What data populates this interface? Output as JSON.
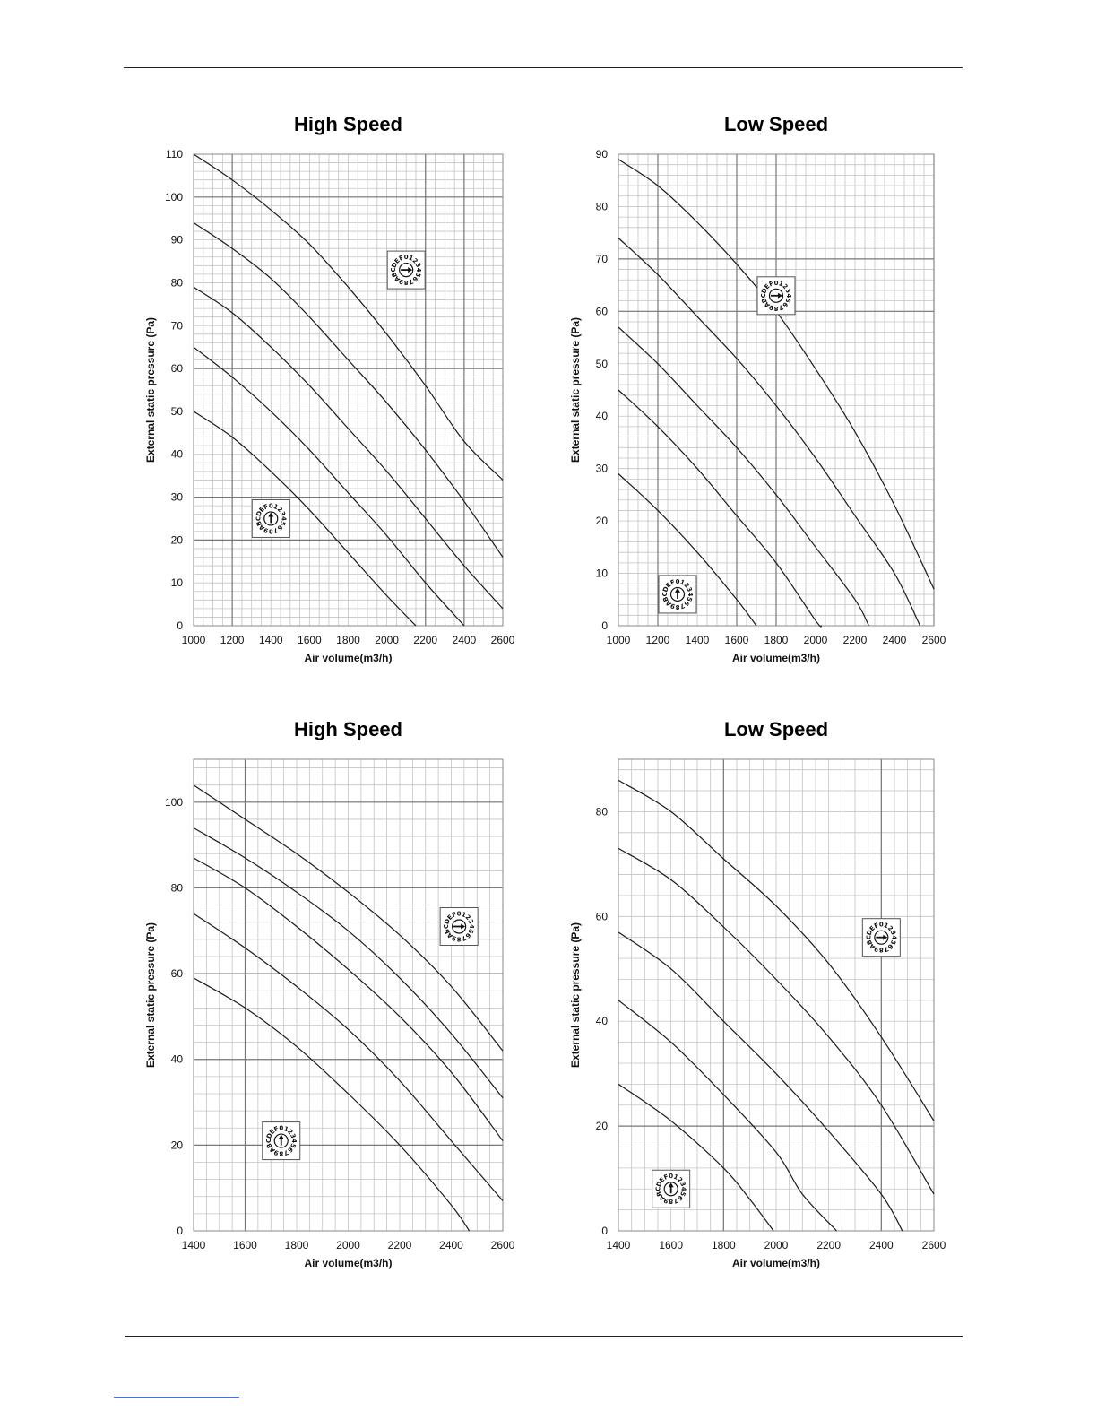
{
  "page": {
    "footer_link_color": "#4a6fd6"
  },
  "dial": {
    "characters": "0123456789ABCDEF",
    "icon": "rotary-switch-dial-icon"
  },
  "chart_data": [
    {
      "type": "line",
      "title": "High Speed",
      "xlabel": "Air volume(m3/h)",
      "ylabel": "External static pressure (Pa)",
      "xlim": [
        1000,
        2600
      ],
      "ylim": [
        0,
        110
      ],
      "x_ticks": [
        1000,
        1200,
        1400,
        1600,
        1800,
        2000,
        2200,
        2400,
        2600
      ],
      "y_ticks": [
        0,
        10,
        20,
        30,
        40,
        50,
        60,
        70,
        80,
        90,
        100,
        110
      ],
      "grid": {
        "minor_x": 50,
        "minor_y": 2,
        "major_x": [
          1200,
          2200,
          2400
        ],
        "major_y": [
          20,
          30,
          60,
          100
        ]
      },
      "dial_indicator": {
        "direction": "up",
        "at": [
          1400,
          25
        ]
      },
      "dial_indicator_2": {
        "direction": "right",
        "at": [
          2100,
          83
        ]
      },
      "series": [
        {
          "points": [
            [
              1000,
              50
            ],
            [
              1200,
              44
            ],
            [
              1400,
              36
            ],
            [
              1600,
              27
            ],
            [
              1800,
              17
            ],
            [
              2000,
              7
            ],
            [
              2150,
              0
            ]
          ]
        },
        {
          "points": [
            [
              1000,
              65
            ],
            [
              1200,
              58
            ],
            [
              1400,
              50
            ],
            [
              1600,
              41
            ],
            [
              1800,
              31
            ],
            [
              2000,
              21
            ],
            [
              2200,
              10
            ],
            [
              2400,
              0
            ]
          ]
        },
        {
          "points": [
            [
              1000,
              79
            ],
            [
              1200,
              73
            ],
            [
              1400,
              65
            ],
            [
              1600,
              56
            ],
            [
              1800,
              46
            ],
            [
              2000,
              36
            ],
            [
              2200,
              25
            ],
            [
              2400,
              14
            ],
            [
              2600,
              4
            ]
          ]
        },
        {
          "points": [
            [
              1000,
              94
            ],
            [
              1200,
              88
            ],
            [
              1400,
              81
            ],
            [
              1600,
              72
            ],
            [
              1800,
              62
            ],
            [
              2000,
              52
            ],
            [
              2200,
              41
            ],
            [
              2400,
              29
            ],
            [
              2600,
              16
            ]
          ]
        },
        {
          "points": [
            [
              1000,
              110
            ],
            [
              1200,
              104
            ],
            [
              1400,
              97
            ],
            [
              1600,
              89
            ],
            [
              1800,
              79
            ],
            [
              2000,
              68
            ],
            [
              2200,
              56
            ],
            [
              2400,
              43
            ],
            [
              2600,
              34
            ]
          ]
        }
      ]
    },
    {
      "type": "line",
      "title": "Low Speed",
      "xlabel": "Air volume(m3/h)",
      "ylabel": "External static pressure (Pa)",
      "xlim": [
        1000,
        2600
      ],
      "ylim": [
        0,
        90
      ],
      "x_ticks": [
        1000,
        1200,
        1400,
        1600,
        1800,
        2000,
        2200,
        2400,
        2600
      ],
      "y_ticks": [
        0,
        10,
        20,
        30,
        40,
        50,
        60,
        70,
        80,
        90
      ],
      "grid": {
        "minor_x": 50,
        "minor_y": 2,
        "major_x": [
          1200,
          1600,
          1800,
          2600
        ],
        "major_y": [
          60,
          70
        ]
      },
      "dial_indicator": {
        "direction": "up",
        "at": [
          1300,
          6
        ]
      },
      "dial_indicator_2": {
        "direction": "right",
        "at": [
          1800,
          63
        ]
      },
      "series": [
        {
          "points": [
            [
              1000,
              29
            ],
            [
              1200,
              22
            ],
            [
              1400,
              14
            ],
            [
              1600,
              5
            ],
            [
              1700,
              0
            ]
          ]
        },
        {
          "points": [
            [
              1000,
              45
            ],
            [
              1200,
              38
            ],
            [
              1400,
              30
            ],
            [
              1600,
              21
            ],
            [
              1800,
              12
            ],
            [
              2000,
              1
            ],
            [
              2030,
              0
            ]
          ]
        },
        {
          "points": [
            [
              1000,
              57
            ],
            [
              1200,
              50
            ],
            [
              1400,
              42
            ],
            [
              1600,
              34
            ],
            [
              1800,
              25
            ],
            [
              2000,
              15
            ],
            [
              2200,
              5
            ],
            [
              2270,
              0
            ]
          ]
        },
        {
          "points": [
            [
              1000,
              74
            ],
            [
              1200,
              67
            ],
            [
              1400,
              59
            ],
            [
              1600,
              51
            ],
            [
              1800,
              42
            ],
            [
              2000,
              32
            ],
            [
              2200,
              21
            ],
            [
              2400,
              10
            ],
            [
              2530,
              0
            ]
          ]
        },
        {
          "points": [
            [
              1000,
              89
            ],
            [
              1200,
              84
            ],
            [
              1400,
              77
            ],
            [
              1600,
              69
            ],
            [
              1800,
              60
            ],
            [
              2000,
              49
            ],
            [
              2200,
              37
            ],
            [
              2400,
              23
            ],
            [
              2600,
              7
            ]
          ]
        }
      ]
    },
    {
      "type": "line",
      "title": "High Speed",
      "xlabel": "Air volume(m3/h)",
      "ylabel": "External static pressure (Pa)",
      "xlim": [
        1400,
        2600
      ],
      "ylim": [
        0,
        110
      ],
      "x_ticks": [
        1400,
        1600,
        1800,
        2000,
        2200,
        2400,
        2600
      ],
      "y_ticks": [
        0,
        20,
        40,
        60,
        80,
        100
      ],
      "grid": {
        "minor_x": 50,
        "minor_y": 4,
        "major_x": [
          1600
        ],
        "major_y": [
          20,
          40,
          60,
          80,
          100
        ]
      },
      "dial_indicator": {
        "direction": "up",
        "at": [
          1740,
          21
        ]
      },
      "dial_indicator_2": {
        "direction": "right",
        "at": [
          2430,
          71
        ]
      },
      "series": [
        {
          "points": [
            [
              1400,
              59
            ],
            [
              1600,
              52
            ],
            [
              1800,
              43
            ],
            [
              2000,
              32
            ],
            [
              2200,
              20
            ],
            [
              2400,
              6
            ],
            [
              2470,
              0
            ]
          ]
        },
        {
          "points": [
            [
              1400,
              74
            ],
            [
              1600,
              66
            ],
            [
              1800,
              57
            ],
            [
              2000,
              47
            ],
            [
              2200,
              35
            ],
            [
              2400,
              21
            ],
            [
              2600,
              7
            ]
          ]
        },
        {
          "points": [
            [
              1400,
              87
            ],
            [
              1600,
              80
            ],
            [
              1800,
              71
            ],
            [
              2000,
              61
            ],
            [
              2200,
              50
            ],
            [
              2400,
              37
            ],
            [
              2600,
              21
            ]
          ]
        },
        {
          "points": [
            [
              1400,
              94
            ],
            [
              1600,
              87
            ],
            [
              1800,
              79
            ],
            [
              2000,
              70
            ],
            [
              2200,
              59
            ],
            [
              2400,
              46
            ],
            [
              2600,
              31
            ]
          ]
        },
        {
          "points": [
            [
              1400,
              104
            ],
            [
              1600,
              96
            ],
            [
              1800,
              88
            ],
            [
              2000,
              79
            ],
            [
              2200,
              69
            ],
            [
              2400,
              57
            ],
            [
              2600,
              42
            ]
          ]
        }
      ]
    },
    {
      "type": "line",
      "title": "Low Speed",
      "xlabel": "Air volume(m3/h)",
      "ylabel": "External static pressure (Pa)",
      "xlim": [
        1400,
        2600
      ],
      "ylim": [
        0,
        90
      ],
      "x_ticks": [
        1400,
        1600,
        1800,
        2000,
        2200,
        2400,
        2600
      ],
      "y_ticks": [
        0,
        20,
        40,
        60,
        80
      ],
      "grid": {
        "minor_x": 50,
        "minor_y": 4,
        "major_x": [
          1800,
          2400
        ],
        "major_y": [
          20
        ]
      },
      "dial_indicator": {
        "direction": "up",
        "at": [
          1600,
          8
        ]
      },
      "dial_indicator_2": {
        "direction": "right",
        "at": [
          2400,
          56
        ]
      },
      "series": [
        {
          "points": [
            [
              1400,
              28
            ],
            [
              1600,
              21
            ],
            [
              1800,
              12
            ],
            [
              1900,
              6
            ],
            [
              1990,
              0
            ]
          ]
        },
        {
          "points": [
            [
              1400,
              44
            ],
            [
              1600,
              36
            ],
            [
              1800,
              26
            ],
            [
              2000,
              15
            ],
            [
              2100,
              7
            ],
            [
              2230,
              0
            ]
          ]
        },
        {
          "points": [
            [
              1400,
              57
            ],
            [
              1600,
              50
            ],
            [
              1800,
              40
            ],
            [
              2000,
              30
            ],
            [
              2200,
              19
            ],
            [
              2400,
              7
            ],
            [
              2480,
              0
            ]
          ]
        },
        {
          "points": [
            [
              1400,
              73
            ],
            [
              1600,
              67
            ],
            [
              1800,
              58
            ],
            [
              2000,
              48
            ],
            [
              2200,
              37
            ],
            [
              2400,
              24
            ],
            [
              2600,
              7
            ]
          ]
        },
        {
          "points": [
            [
              1400,
              86
            ],
            [
              1600,
              80
            ],
            [
              1800,
              71
            ],
            [
              2000,
              62
            ],
            [
              2200,
              51
            ],
            [
              2400,
              37
            ],
            [
              2600,
              21
            ]
          ]
        }
      ]
    }
  ]
}
